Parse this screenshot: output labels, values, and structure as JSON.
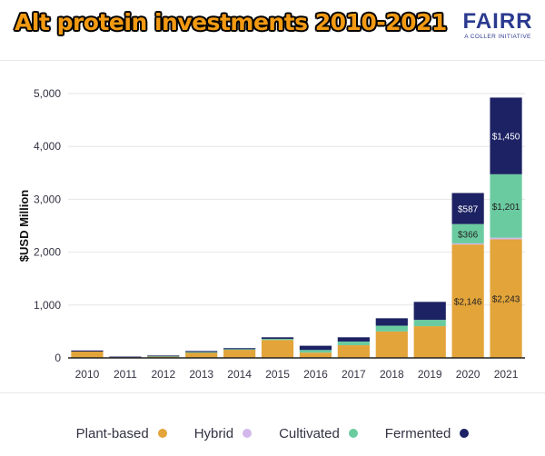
{
  "header": {
    "title": "Alt protein investments 2010-2021",
    "logo_word": "FAIRR",
    "logo_sub": "A COLLER INITIATIVE"
  },
  "colors": {
    "plant_based": "#e3a43a",
    "hybrid": "#d3b8ec",
    "cultivated": "#6bcba0",
    "fermented": "#1c2263",
    "axis": "#222222",
    "grid": "#e6e6e6",
    "title_fill": "#f39a12",
    "brand": "#2b3a8f"
  },
  "chart_data": {
    "type": "bar",
    "stacked": true,
    "title": "",
    "xlabel": "",
    "ylabel": "$USD Million",
    "ylim": [
      0,
      5000
    ],
    "yticks": [
      "0",
      "1,000",
      "2,000",
      "3,000",
      "4,000",
      "5,000"
    ],
    "categories": [
      "2010",
      "2011",
      "2012",
      "2013",
      "2014",
      "2015",
      "2016",
      "2017",
      "2018",
      "2019",
      "2020",
      "2021"
    ],
    "series": [
      {
        "name": "Plant-based",
        "values": [
          120,
          15,
          30,
          100,
          155,
          340,
          100,
          240,
          500,
          600,
          2146,
          2243
        ]
      },
      {
        "name": "Hybrid",
        "values": [
          0,
          0,
          0,
          0,
          0,
          0,
          0,
          0,
          0,
          0,
          20,
          30
        ]
      },
      {
        "name": "Cultivated",
        "values": [
          0,
          0,
          5,
          10,
          10,
          20,
          50,
          70,
          110,
          120,
          366,
          1201
        ]
      },
      {
        "name": "Fermented",
        "values": [
          20,
          10,
          10,
          20,
          20,
          30,
          80,
          80,
          140,
          340,
          587,
          1450
        ]
      }
    ],
    "data_labels": [
      {
        "category": "2020",
        "series": "Plant-based",
        "text": "$2,146"
      },
      {
        "category": "2020",
        "series": "Cultivated",
        "text": "$366"
      },
      {
        "category": "2020",
        "series": "Fermented",
        "text": "$587"
      },
      {
        "category": "2021",
        "series": "Plant-based",
        "text": "$2,243"
      },
      {
        "category": "2021",
        "series": "Cultivated",
        "text": "$1,201"
      },
      {
        "category": "2021",
        "series": "Fermented",
        "text": "$1,450"
      }
    ],
    "grid": true,
    "legend": "bottom"
  },
  "legend": [
    {
      "label": "Plant-based",
      "color": "#e3a43a"
    },
    {
      "label": "Hybrid",
      "color": "#d3b8ec"
    },
    {
      "label": "Cultivated",
      "color": "#6bcba0"
    },
    {
      "label": "Fermented",
      "color": "#1c2263"
    }
  ]
}
